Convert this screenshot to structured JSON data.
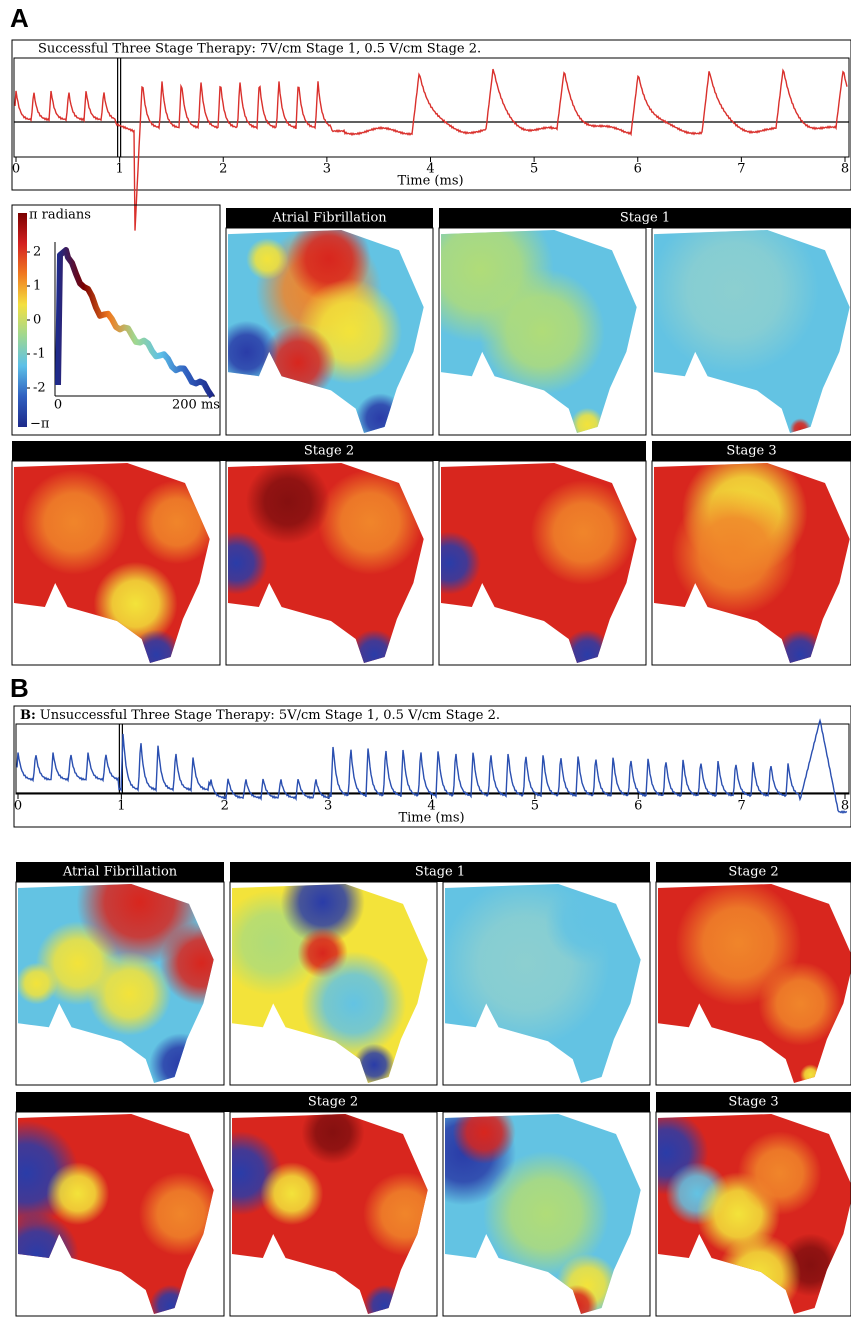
{
  "panel_a": {
    "label": "A",
    "trace": {
      "title": "Successful Three Stage Therapy: 7V/cm Stage 1, 0.5 V/cm Stage 2.",
      "xlabel": "Time (ms)",
      "xlim": [
        0,
        8
      ],
      "xticks": [
        0,
        1,
        2,
        3,
        4,
        5,
        6,
        7,
        8
      ]
    },
    "phase_legend": {
      "top_label": "π radians",
      "bottom_label": "−π",
      "ticks": [
        2,
        1,
        0,
        -1,
        -2
      ],
      "time_start": "0",
      "time_end": "200 ms"
    },
    "map_rows": [
      [
        "Atrial Fibrillation",
        "Stage 1"
      ],
      [
        "Stage 2",
        "Stage 3"
      ]
    ]
  },
  "panel_b": {
    "label": "B",
    "trace": {
      "title_label": "B:",
      "title": "Unsuccessful Three Stage Therapy: 5V/cm Stage 1, 0.5 V/cm Stage 2.",
      "xlabel": "Time (ms)",
      "xlim": [
        0,
        8
      ],
      "xticks": [
        0,
        1,
        2,
        3,
        4,
        5,
        6,
        7,
        8
      ]
    },
    "map_rows": [
      [
        "Atrial Fibrillation",
        "Stage 1",
        "Stage 2"
      ],
      [
        "Stage 2",
        "Stage 3"
      ]
    ]
  }
}
